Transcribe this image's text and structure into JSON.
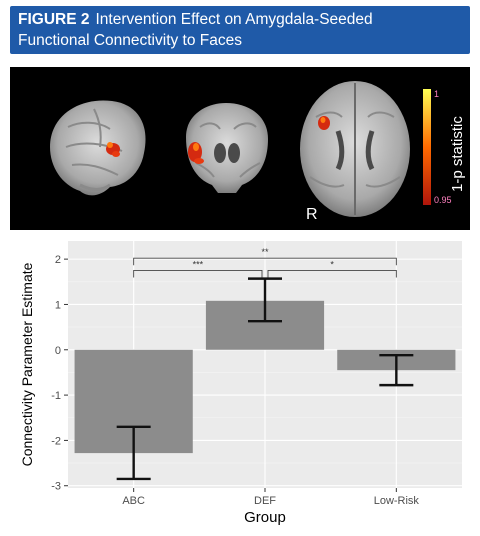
{
  "figure": {
    "label": "FIGURE 2",
    "title_line1": "Intervention Effect on Amygdala-Seeded",
    "title_line2": "Functional Connectivity to Faces"
  },
  "brain_panel": {
    "colorbar_title": "1-p statistic",
    "colorbar_max": "1",
    "colorbar_min": "0.95",
    "orientation_label": "R",
    "colors": {
      "low": "#c81e10",
      "mid": "#ff6a00",
      "high": "#ffff33"
    }
  },
  "chart_data": {
    "type": "bar",
    "categories": [
      "ABC",
      "DEF",
      "Low-Risk"
    ],
    "values": [
      -2.28,
      1.08,
      -0.45
    ],
    "error_low": [
      -2.85,
      0.63,
      -0.78
    ],
    "error_high": [
      -1.7,
      1.57,
      -0.12
    ],
    "xlabel": "Group",
    "ylabel": "Connectivity Parameter Estimate",
    "ylim": [
      -3.05,
      2.4
    ],
    "yticks": [
      -3,
      -2,
      -1,
      0,
      1,
      2
    ],
    "ytick_labels": [
      "-3",
      "-2",
      "-1",
      "0",
      "1",
      "2"
    ],
    "grid": true,
    "bar_color": "#8c8c8c",
    "panel_bg": "#ebebeb",
    "significance": [
      {
        "from": 0,
        "to": 2,
        "label": "**",
        "level": 2.02
      },
      {
        "from": 0,
        "to": 1,
        "label": "***",
        "level": 1.75
      },
      {
        "from": 1,
        "to": 2,
        "label": "*",
        "level": 1.75
      }
    ]
  }
}
